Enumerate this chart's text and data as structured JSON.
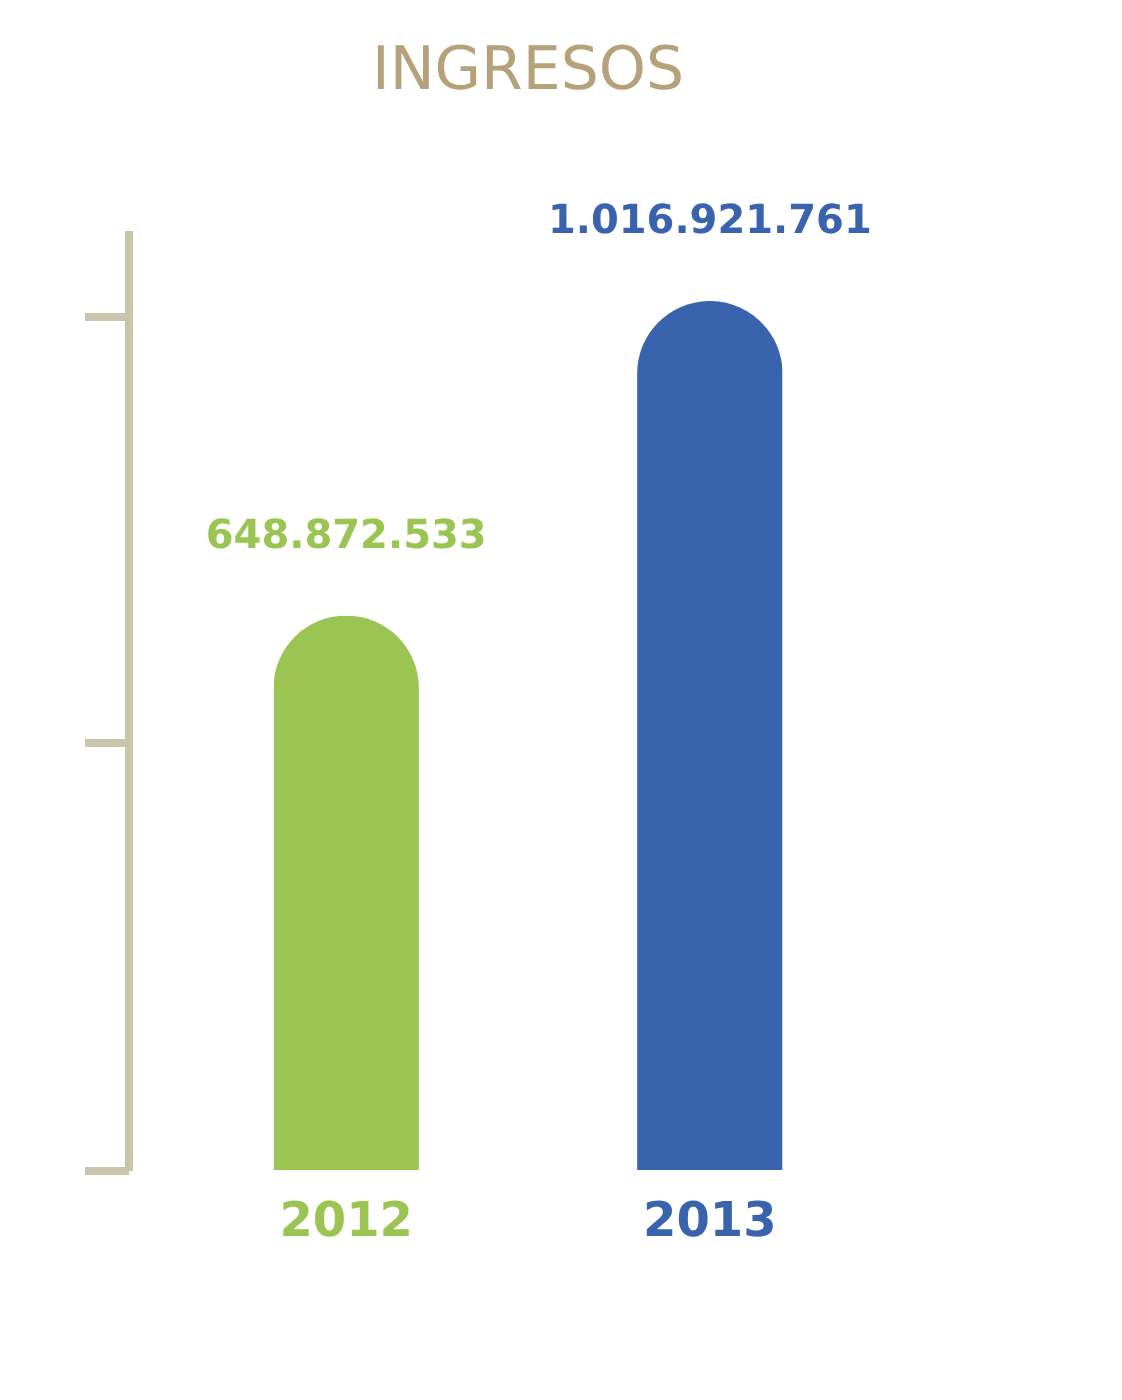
{
  "chart_data": {
    "type": "bar",
    "title": "INGRESOS",
    "categories": [
      "2012",
      "2013"
    ],
    "values": [
      648872533,
      1016921761
    ],
    "colors": [
      "#9bc553",
      "#3a63ad"
    ],
    "data_labels": true,
    "value_labels": [
      "648.872.533",
      "1.016.921.761"
    ],
    "tick_labels": "x"
  }
}
